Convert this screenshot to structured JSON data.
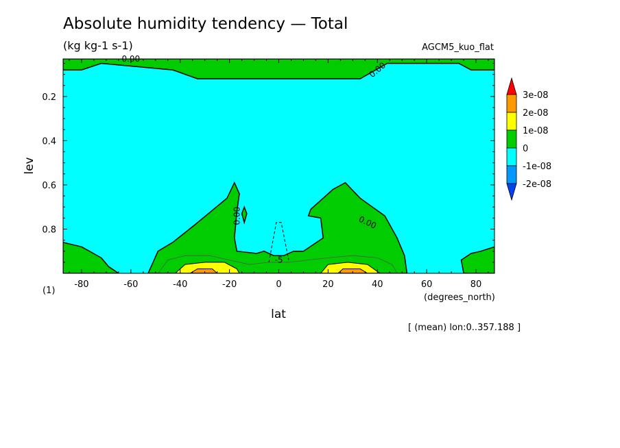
{
  "title": "Absolute humidity tendency — Total",
  "units": "(kg kg-1 s-1)",
  "run_label": "AGCM5_kuo_flat",
  "footnote": "[ (mean) lon:0..357.188 ]",
  "page_index": "(1)",
  "chart_data": {
    "type": "contour",
    "xlabel": "lat",
    "xunits": "(degrees_north)",
    "ylabel": "lev",
    "xlim": [
      -87.5,
      87.5
    ],
    "ylim": [
      1.0,
      0.03
    ],
    "xticks": [
      -80,
      -60,
      -40,
      -20,
      0,
      20,
      40,
      60,
      80
    ],
    "yticks": [
      0.2,
      0.4,
      0.6,
      0.8
    ],
    "legend": {
      "labels": [
        "3e-08",
        "2e-08",
        "1e-08",
        "0",
        "-1e-08",
        "-2e-08"
      ],
      "colors": [
        "#ff0000",
        "#ff9900",
        "#ffff00",
        "#00cc00",
        "#00ffff",
        "#0099ff",
        "#0044ee"
      ],
      "placement": "right"
    },
    "background_color": "#00ffff",
    "regions": [
      {
        "name": "upper-positive-band",
        "level": "0 to 1e-08",
        "color": "#00cc00",
        "points": [
          [
            -87.5,
            0.03
          ],
          [
            87.5,
            0.03
          ],
          [
            87.5,
            0.08
          ],
          [
            78,
            0.08
          ],
          [
            73,
            0.05
          ],
          [
            44,
            0.05
          ],
          [
            33,
            0.12
          ],
          [
            3,
            0.12
          ],
          [
            -6,
            0.12
          ],
          [
            -33,
            0.12
          ],
          [
            -43,
            0.08
          ],
          [
            -72,
            0.05
          ],
          [
            -80,
            0.08
          ],
          [
            -87.5,
            0.08
          ]
        ]
      },
      {
        "name": "lower-positive-region",
        "level": "0 to 1e-08",
        "color": "#00cc00",
        "points": [
          [
            -53,
            1.0
          ],
          [
            -49,
            0.9
          ],
          [
            -43,
            0.86
          ],
          [
            -34,
            0.78
          ],
          [
            -21,
            0.66
          ],
          [
            -18,
            0.59
          ],
          [
            -16,
            0.64
          ],
          [
            -17,
            0.72
          ],
          [
            -18,
            0.84
          ],
          [
            -17,
            0.9
          ],
          [
            -9,
            0.91
          ],
          [
            -6,
            0.9
          ],
          [
            -2,
            0.92
          ],
          [
            2,
            0.92
          ],
          [
            6,
            0.9
          ],
          [
            10,
            0.9
          ],
          [
            18,
            0.84
          ],
          [
            17,
            0.75
          ],
          [
            12,
            0.74
          ],
          [
            13,
            0.71
          ],
          [
            22,
            0.62
          ],
          [
            27,
            0.59
          ],
          [
            33,
            0.66
          ],
          [
            43,
            0.74
          ],
          [
            48,
            0.84
          ],
          [
            51,
            0.92
          ],
          [
            52,
            1.0
          ]
        ]
      },
      {
        "name": "south-polar-positive",
        "level": "0 to 1e-08",
        "color": "#00cc00",
        "points": [
          [
            -87.5,
            0.86
          ],
          [
            -80,
            0.88
          ],
          [
            -72,
            0.93
          ],
          [
            -69,
            0.97
          ],
          [
            -65,
            1.0
          ],
          [
            -87.5,
            1.0
          ]
        ]
      },
      {
        "name": "north-polar-positive",
        "level": "0 to 1e-08",
        "color": "#00cc00",
        "points": [
          [
            75,
            1.0
          ],
          [
            74,
            0.94
          ],
          [
            78,
            0.91
          ],
          [
            82,
            0.9
          ],
          [
            87.5,
            0.88
          ],
          [
            87.5,
            1.0
          ]
        ]
      },
      {
        "name": "small-positive-island",
        "level": "0 to 1e-08",
        "color": "#00cc00",
        "points": [
          [
            -14,
            0.7
          ],
          [
            -13,
            0.73
          ],
          [
            -14,
            0.77
          ],
          [
            -15,
            0.73
          ]
        ]
      },
      {
        "name": "south-yellow-lobe",
        "level": "1e-08 to 2e-08",
        "color": "#ffff00",
        "points": [
          [
            -42,
            1.0
          ],
          [
            -38,
            0.96
          ],
          [
            -30,
            0.95
          ],
          [
            -22,
            0.95
          ],
          [
            -17,
            0.98
          ],
          [
            -16,
            1.0
          ]
        ]
      },
      {
        "name": "north-yellow-lobe",
        "level": "1e-08 to 2e-08",
        "color": "#ffff00",
        "points": [
          [
            17,
            1.0
          ],
          [
            20,
            0.96
          ],
          [
            28,
            0.95
          ],
          [
            36,
            0.96
          ],
          [
            41,
            1.0
          ]
        ]
      },
      {
        "name": "south-orange-core",
        "level": "2e-08 to 3e-08",
        "color": "#ff9900",
        "points": [
          [
            -36,
            1.0
          ],
          [
            -33,
            0.98
          ],
          [
            -27,
            0.98
          ],
          [
            -25,
            1.0
          ]
        ]
      },
      {
        "name": "north-orange-core",
        "level": "2e-08 to 3e-08",
        "color": "#ff9900",
        "points": [
          [
            24,
            1.0
          ],
          [
            26,
            0.98
          ],
          [
            33,
            0.98
          ],
          [
            36,
            1.0
          ]
        ]
      }
    ],
    "contour_lines": [
      {
        "value": 0.0,
        "style": "solid",
        "label": "0.00"
      },
      {
        "value": 5e-09,
        "style": "thin"
      },
      {
        "value": -5e-09,
        "style": "dashed",
        "label": "-5"
      }
    ],
    "contour_labels": [
      {
        "text": "0.00",
        "at": [
          -60,
          0.03
        ],
        "rotate": 0
      },
      {
        "text": "0.00",
        "at": [
          40,
          0.08
        ],
        "rotate": -40
      },
      {
        "text": "0.00",
        "at": [
          -17,
          0.74
        ],
        "rotate": -90
      },
      {
        "text": "0.00",
        "at": [
          36,
          0.77
        ],
        "rotate": 25
      },
      {
        "text": "-5",
        "at": [
          0,
          0.94
        ],
        "rotate": 0
      }
    ]
  }
}
